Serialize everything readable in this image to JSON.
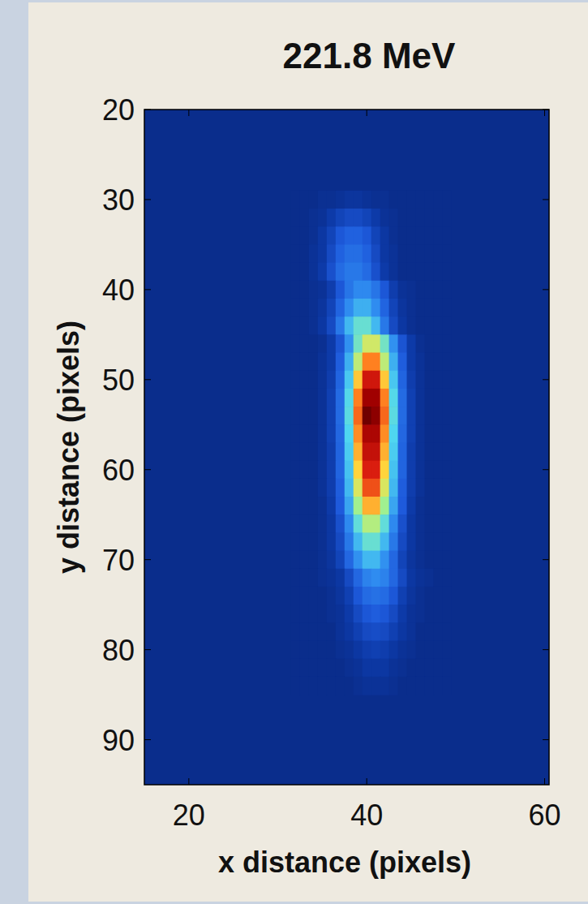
{
  "chart_data": {
    "type": "heatmap",
    "title": "221.8 MeV",
    "x_label": "x distance (pixels)",
    "y_label": "y distance (pixels)",
    "xlim": [
      15,
      60.5
    ],
    "ylim": [
      20,
      95
    ],
    "xticks": [
      20,
      40,
      60
    ],
    "yticks": [
      20,
      30,
      40,
      50,
      60,
      70,
      80,
      90
    ],
    "zlim": [
      0,
      100
    ],
    "x": [
      32,
      33,
      34,
      35,
      36,
      37,
      38,
      39,
      40,
      41,
      42,
      43,
      44,
      45,
      46,
      47,
      48,
      49
    ],
    "y": [
      30,
      32,
      34,
      36,
      38,
      40,
      42,
      44,
      46,
      48,
      50,
      52,
      54,
      56,
      58,
      60,
      62,
      64,
      66,
      68,
      70,
      72,
      74,
      76,
      78,
      80,
      82,
      84
    ],
    "z": [
      [
        0,
        0,
        0,
        1,
        1,
        2,
        3,
        3,
        2,
        1,
        1,
        0,
        0,
        0,
        0,
        0,
        0,
        0
      ],
      [
        0,
        0,
        1,
        2,
        5,
        8,
        10,
        10,
        8,
        5,
        2,
        1,
        0,
        0,
        0,
        0,
        0,
        0
      ],
      [
        0,
        0,
        1,
        4,
        8,
        14,
        17,
        17,
        14,
        8,
        4,
        1,
        0,
        0,
        0,
        0,
        0,
        0
      ],
      [
        0,
        0,
        2,
        4,
        10,
        17,
        21,
        21,
        17,
        10,
        4,
        2,
        0,
        0,
        0,
        0,
        0,
        0
      ],
      [
        0,
        0,
        2,
        5,
        12,
        20,
        24,
        24,
        20,
        12,
        5,
        2,
        0,
        0,
        0,
        0,
        0,
        0
      ],
      [
        0,
        0,
        1,
        2,
        6,
        14,
        23,
        29,
        29,
        23,
        14,
        6,
        2,
        1,
        0,
        0,
        0,
        0
      ],
      [
        0,
        0,
        1,
        3,
        8,
        18,
        30,
        37,
        37,
        30,
        18,
        8,
        3,
        1,
        0,
        0,
        0,
        0
      ],
      [
        0,
        0,
        1,
        4,
        10,
        24,
        39,
        49,
        49,
        39,
        24,
        10,
        4,
        1,
        0,
        0,
        0,
        0
      ],
      [
        0,
        0,
        0,
        1,
        5,
        13,
        31,
        51,
        63,
        63,
        51,
        31,
        13,
        5,
        1,
        0,
        0,
        0
      ],
      [
        0,
        0,
        0,
        2,
        5,
        16,
        37,
        61,
        76,
        76,
        61,
        37,
        16,
        5,
        2,
        0,
        0,
        0
      ],
      [
        0,
        0,
        0,
        2,
        6,
        18,
        42,
        70,
        87,
        87,
        70,
        42,
        18,
        6,
        2,
        0,
        0,
        0
      ],
      [
        0,
        0,
        0,
        2,
        7,
        20,
        46,
        76,
        95,
        95,
        76,
        46,
        20,
        7,
        2,
        0,
        0,
        0
      ],
      [
        0,
        0,
        0,
        2,
        7,
        20,
        47,
        78,
        100,
        97,
        78,
        47,
        20,
        7,
        2,
        0,
        0,
        0
      ],
      [
        0,
        0,
        0,
        2,
        7,
        19,
        45,
        75,
        93,
        93,
        75,
        45,
        19,
        7,
        2,
        0,
        0,
        0
      ],
      [
        0,
        0,
        0,
        2,
        6,
        18,
        43,
        72,
        89,
        89,
        72,
        43,
        18,
        6,
        2,
        0,
        0,
        0
      ],
      [
        0,
        0,
        0,
        2,
        6,
        18,
        41,
        69,
        85,
        85,
        69,
        41,
        18,
        6,
        2,
        0,
        0,
        0
      ],
      [
        0,
        0,
        0,
        2,
        6,
        16,
        39,
        64,
        80,
        80,
        64,
        39,
        16,
        6,
        2,
        0,
        0,
        0
      ],
      [
        0,
        0,
        0,
        1,
        5,
        15,
        35,
        58,
        72,
        72,
        58,
        35,
        15,
        5,
        1,
        0,
        0,
        0
      ],
      [
        0,
        0,
        0,
        1,
        4,
        12,
        29,
        48,
        60,
        60,
        48,
        29,
        12,
        4,
        1,
        0,
        0,
        0
      ],
      [
        0,
        0,
        0,
        1,
        4,
        10,
        24,
        39,
        49,
        49,
        39,
        24,
        10,
        4,
        1,
        0,
        0,
        0
      ],
      [
        0,
        0,
        0,
        1,
        3,
        8,
        19,
        31,
        39,
        39,
        31,
        19,
        8,
        3,
        1,
        0,
        0,
        0
      ],
      [
        0,
        0,
        0,
        1,
        2,
        4,
        10,
        19,
        27,
        30,
        27,
        19,
        10,
        4,
        2,
        1,
        0,
        0
      ],
      [
        0,
        0,
        0,
        0,
        1,
        3,
        7,
        14,
        20,
        22,
        20,
        14,
        7,
        3,
        1,
        0,
        0,
        0
      ],
      [
        0,
        0,
        0,
        0,
        1,
        2,
        5,
        10,
        14,
        16,
        14,
        10,
        5,
        2,
        1,
        0,
        0,
        0
      ],
      [
        0,
        0,
        0,
        0,
        0,
        2,
        4,
        7,
        10,
        11,
        10,
        7,
        4,
        2,
        0,
        0,
        0,
        0
      ],
      [
        0,
        0,
        0,
        0,
        0,
        1,
        2,
        4,
        6,
        7,
        6,
        4,
        2,
        1,
        0,
        0,
        0,
        0
      ],
      [
        0,
        0,
        0,
        0,
        0,
        0,
        1,
        2,
        4,
        4,
        4,
        2,
        1,
        0,
        0,
        0,
        0,
        0
      ],
      [
        0,
        0,
        0,
        0,
        0,
        0,
        0,
        1,
        2,
        2,
        2,
        1,
        0,
        0,
        0,
        0,
        0,
        0
      ]
    ]
  }
}
